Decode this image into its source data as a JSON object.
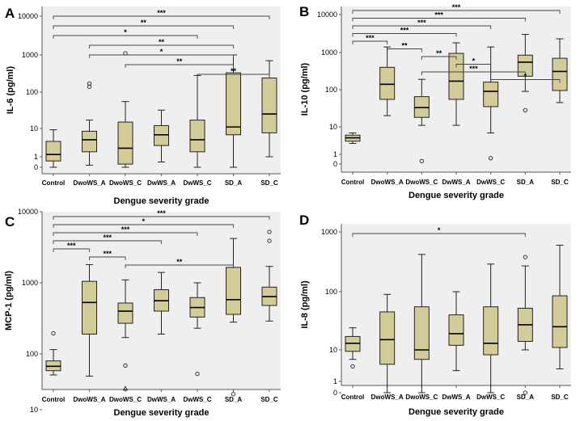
{
  "chart_data": [
    {
      "panel": "A",
      "type": "box",
      "ylabel": "IL-6 (pg/ml)",
      "xlabel": "Dengue severity grade",
      "scale": "log",
      "yticks": [
        {
          "v": 0,
          "label": "0"
        },
        {
          "v": 1,
          "label": "1"
        },
        {
          "v": 10,
          "label": "10"
        },
        {
          "v": 100,
          "label": "100"
        },
        {
          "v": 1000,
          "label": "1000"
        },
        {
          "v": 10000,
          "label": "10000"
        }
      ],
      "categories": [
        "Control",
        "DwoWS_A",
        "DwoWS_C",
        "DwWS_A",
        "DwWS_C",
        "SD_A",
        "SD_C"
      ],
      "boxes": [
        {
          "min": 0,
          "q1": 0.6,
          "median": 1.2,
          "q3": 3.5,
          "max": 9,
          "outliers": []
        },
        {
          "min": 0.2,
          "q1": 1.5,
          "median": 4,
          "q3": 8,
          "max": 17,
          "outliers": [
            140,
            170
          ]
        },
        {
          "min": 0,
          "q1": 0.3,
          "median": 2,
          "q3": 15,
          "max": 55,
          "outliers": [
            1100
          ]
        },
        {
          "min": 0.5,
          "q1": 2.5,
          "median": 6,
          "q3": 12,
          "max": 32,
          "outliers": []
        },
        {
          "min": 0,
          "q1": 1.5,
          "median": 4,
          "q3": 17,
          "max": 280,
          "outliers": []
        },
        {
          "min": 0,
          "q1": 6,
          "median": 11,
          "q3": 330,
          "max": 1000,
          "outliers": []
        },
        {
          "min": 1,
          "q1": 7,
          "median": 25,
          "q3": 240,
          "max": 700,
          "outliers": []
        }
      ],
      "significance": [
        {
          "from": 0,
          "to": 6,
          "label": "***"
        },
        {
          "from": 0,
          "to": 5,
          "label": "**"
        },
        {
          "from": 0,
          "to": 4,
          "label": "*"
        },
        {
          "from": 1,
          "to": 5,
          "label": "**"
        },
        {
          "from": 1,
          "to": 5,
          "label": "*"
        },
        {
          "from": 2,
          "to": 5,
          "label": "**"
        },
        {
          "from": 4,
          "to": 6,
          "label": "**"
        }
      ]
    },
    {
      "panel": "B",
      "type": "box",
      "ylabel": "IL-10 (pg/ml)",
      "xlabel": "Dengue severity grade",
      "scale": "log",
      "yticks": [
        {
          "v": 0,
          "label": "0"
        },
        {
          "v": 1,
          "label": "1"
        },
        {
          "v": 10,
          "label": "10"
        },
        {
          "v": 100,
          "label": "100"
        },
        {
          "v": 1000,
          "label": "1000"
        },
        {
          "v": 10000,
          "label": "10000"
        }
      ],
      "categories": [
        "Control",
        "DwoWS_A",
        "DwoWS_C",
        "DwWS_A",
        "DwWS_C",
        "SD_A",
        "SD_C"
      ],
      "boxes": [
        {
          "min": 2.5,
          "q1": 3,
          "median": 4,
          "q3": 5,
          "max": 6,
          "outliers": []
        },
        {
          "min": 20,
          "q1": 55,
          "median": 140,
          "q3": 400,
          "max": 1400,
          "outliers": []
        },
        {
          "min": 11,
          "q1": 18,
          "median": 33,
          "q3": 65,
          "max": 190,
          "outliers": [
            0.3
          ]
        },
        {
          "min": 11,
          "q1": 55,
          "median": 170,
          "q3": 950,
          "max": 1800,
          "outliers": []
        },
        {
          "min": 6,
          "q1": 35,
          "median": 90,
          "q3": 160,
          "max": 1400,
          "outliers": [
            0.6
          ]
        },
        {
          "min": 90,
          "q1": 230,
          "median": 550,
          "q3": 850,
          "max": 3000,
          "outliers": [
            28
          ]
        },
        {
          "min": 45,
          "q1": 95,
          "median": 310,
          "q3": 700,
          "max": 2300,
          "outliers": []
        }
      ],
      "significance": [
        {
          "from": 0,
          "to": 6,
          "label": "***"
        },
        {
          "from": 0,
          "to": 5,
          "label": "***"
        },
        {
          "from": 0,
          "to": 4,
          "label": "***"
        },
        {
          "from": 0,
          "to": 3,
          "label": "***"
        },
        {
          "from": 0,
          "to": 1,
          "label": "***"
        },
        {
          "from": 1,
          "to": 2,
          "label": "**"
        },
        {
          "from": 2,
          "to": 3,
          "label": "**"
        },
        {
          "from": 3,
          "to": 4,
          "label": "*"
        },
        {
          "from": 2,
          "to": 5,
          "label": "***"
        },
        {
          "from": 4,
          "to": 6,
          "label": "*"
        }
      ]
    },
    {
      "panel": "C",
      "type": "box",
      "ylabel": "MCP-1 (pg/ml)",
      "xlabel": "Dengue severity grade",
      "scale": "log",
      "yticks": [
        {
          "v": 10,
          "label": "10"
        },
        {
          "v": 100,
          "label": "100"
        },
        {
          "v": 1000,
          "label": "1000"
        },
        {
          "v": 10000,
          "label": "10000"
        }
      ],
      "categories": [
        "Control",
        "DwoWS_A",
        "DwoWS_C",
        "DwWS_A",
        "DwWS_C",
        "SD_A",
        "SD_C"
      ],
      "boxes": [
        {
          "min": 42,
          "q1": 50,
          "median": 60,
          "q3": 75,
          "max": 115,
          "outliers": [
            195
          ]
        },
        {
          "min": 40,
          "q1": 190,
          "median": 530,
          "q3": 1050,
          "max": 1800,
          "outliers": []
        },
        {
          "min": 170,
          "q1": 270,
          "median": 400,
          "q3": 520,
          "max": 1100,
          "outliers": [
            62
          ],
          "triangles": [
            24
          ]
        },
        {
          "min": 190,
          "q1": 400,
          "median": 560,
          "q3": 800,
          "max": 1400,
          "outliers": []
        },
        {
          "min": 230,
          "q1": 330,
          "median": 450,
          "q3": 620,
          "max": 1000,
          "outliers": [
            44
          ]
        },
        {
          "min": 280,
          "q1": 360,
          "median": 580,
          "q3": 1650,
          "max": 4200,
          "outliers": [
            19
          ]
        },
        {
          "min": 290,
          "q1": 480,
          "median": 640,
          "q3": 870,
          "max": 1700,
          "outliers": [
            3900,
            5200
          ]
        }
      ],
      "significance": [
        {
          "from": 0,
          "to": 6,
          "label": "***"
        },
        {
          "from": 0,
          "to": 5,
          "label": "*"
        },
        {
          "from": 0,
          "to": 4,
          "label": "***"
        },
        {
          "from": 0,
          "to": 3,
          "label": "***"
        },
        {
          "from": 0,
          "to": 1,
          "label": "***"
        },
        {
          "from": 1,
          "to": 2,
          "label": "***"
        },
        {
          "from": 2,
          "to": 5,
          "label": "**"
        }
      ]
    },
    {
      "panel": "D",
      "type": "box",
      "ylabel": "IL-8 (pg/ml)",
      "xlabel": "Dengue severity grade",
      "scale": "log",
      "yticks": [
        {
          "v": 0,
          "label": "0"
        },
        {
          "v": 1,
          "label": "1"
        },
        {
          "v": 10,
          "label": "10"
        },
        {
          "v": 100,
          "label": "100"
        },
        {
          "v": 1000,
          "label": "1000"
        }
      ],
      "categories": [
        "Control",
        "DwoWS_A",
        "DwoWS_C",
        "DwWS_A",
        "DwWS_C",
        "SD_A",
        "SD_C"
      ],
      "boxes": [
        {
          "min": 5,
          "q1": 9,
          "median": 13,
          "q3": 17,
          "max": 24,
          "outliers": [
            3
          ]
        },
        {
          "min": 0,
          "q1": 3.5,
          "median": 15,
          "q3": 45,
          "max": 90,
          "outliers": []
        },
        {
          "min": 0,
          "q1": 5,
          "median": 10,
          "q3": 55,
          "max": 420,
          "outliers": []
        },
        {
          "min": 2.2,
          "q1": 12,
          "median": 19,
          "q3": 40,
          "max": 100,
          "outliers": []
        },
        {
          "min": 0,
          "q1": 7,
          "median": 13,
          "q3": 55,
          "max": 290,
          "outliers": []
        },
        {
          "min": 10,
          "q1": 14,
          "median": 27,
          "q3": 52,
          "max": 270,
          "outliers": [
            0,
            380
          ]
        },
        {
          "min": 2.5,
          "q1": 11,
          "median": 25,
          "q3": 85,
          "max": 600,
          "outliers": []
        }
      ],
      "significance": [
        {
          "from": 0,
          "to": 5,
          "label": "*"
        }
      ]
    }
  ],
  "colors": {
    "box_fill": "#d3cc98",
    "plot_bg": "#efefef",
    "stroke": "#222222",
    "bracket": "#444444"
  }
}
